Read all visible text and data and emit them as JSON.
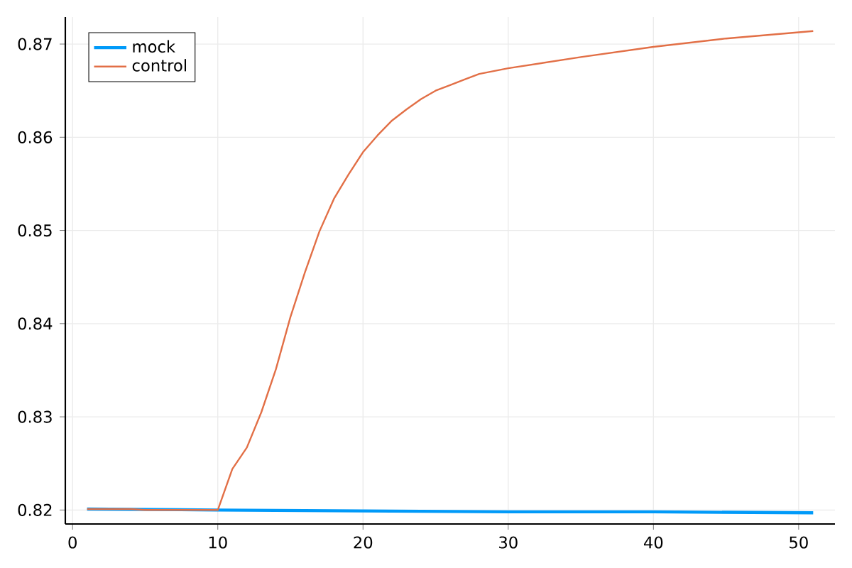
{
  "chart_data": {
    "type": "line",
    "x": [
      1,
      2,
      3,
      4,
      5,
      6,
      7,
      8,
      9,
      10,
      11,
      12,
      13,
      14,
      15,
      16,
      17,
      18,
      19,
      20,
      21,
      22,
      23,
      24,
      25,
      26,
      27,
      28,
      30,
      35,
      40,
      45,
      51
    ],
    "series": [
      {
        "name": "mock",
        "color": "#009af9",
        "x": [
          1,
          10,
          20,
          30,
          40,
          51
        ],
        "values": [
          0.8201,
          0.82,
          0.8199,
          0.8198,
          0.8198,
          0.8197
        ]
      },
      {
        "name": "control",
        "color": "#e26f46",
        "values": [
          0.8201,
          0.8201,
          0.8201,
          0.8201,
          0.82,
          0.82,
          0.82,
          0.82,
          0.82,
          0.82,
          0.8244,
          0.8267,
          0.8305,
          0.8351,
          0.8407,
          0.8455,
          0.8499,
          0.8534,
          0.856,
          0.8584,
          0.8602,
          0.8618,
          0.863,
          0.8641,
          0.865,
          0.8656,
          0.8662,
          0.8668,
          0.8674,
          0.8686,
          0.8697,
          0.8706,
          0.8714
        ]
      }
    ],
    "xlim": [
      -0.5,
      52.5
    ],
    "ylim": [
      0.8185,
      0.8729
    ],
    "xticks": [
      0,
      10,
      20,
      30,
      40,
      50
    ],
    "yticks": [
      0.82,
      0.83,
      0.84,
      0.85,
      0.86,
      0.87
    ],
    "grid": true,
    "legend": "top left",
    "line_style": "solid",
    "marker": "none"
  }
}
